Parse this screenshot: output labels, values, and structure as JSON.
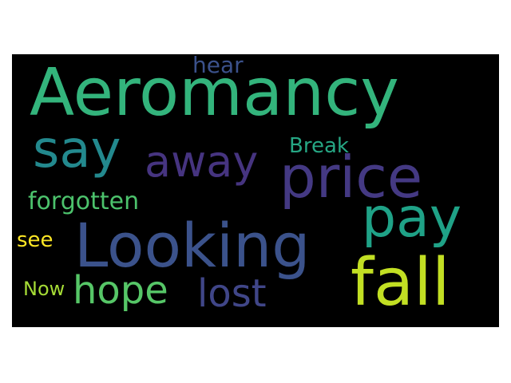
{
  "words": [
    {
      "id": "aeromancy",
      "text": "Aeromancy",
      "color": "#33b47c"
    },
    {
      "id": "say",
      "text": "say",
      "color": "#23898e"
    },
    {
      "id": "away",
      "text": "away",
      "color": "#463480"
    },
    {
      "id": "price",
      "text": "price",
      "color": "#443983"
    },
    {
      "id": "hear",
      "text": "hear",
      "color": "#3b518b"
    },
    {
      "id": "break",
      "text": "Break",
      "color": "#26a784"
    },
    {
      "id": "forgotten",
      "text": "forgotten",
      "color": "#4cc26c"
    },
    {
      "id": "pay",
      "text": "pay",
      "color": "#1fa287"
    },
    {
      "id": "looking",
      "text": "Looking",
      "color": "#3b528b"
    },
    {
      "id": "see",
      "text": "see",
      "color": "#fde725"
    },
    {
      "id": "fall",
      "text": "fall",
      "color": "#c2df23"
    },
    {
      "id": "hope",
      "text": "hope",
      "color": "#56c667"
    },
    {
      "id": "lost",
      "text": "lost",
      "color": "#404688"
    },
    {
      "id": "now",
      "text": "Now",
      "color": "#a5db36"
    }
  ]
}
